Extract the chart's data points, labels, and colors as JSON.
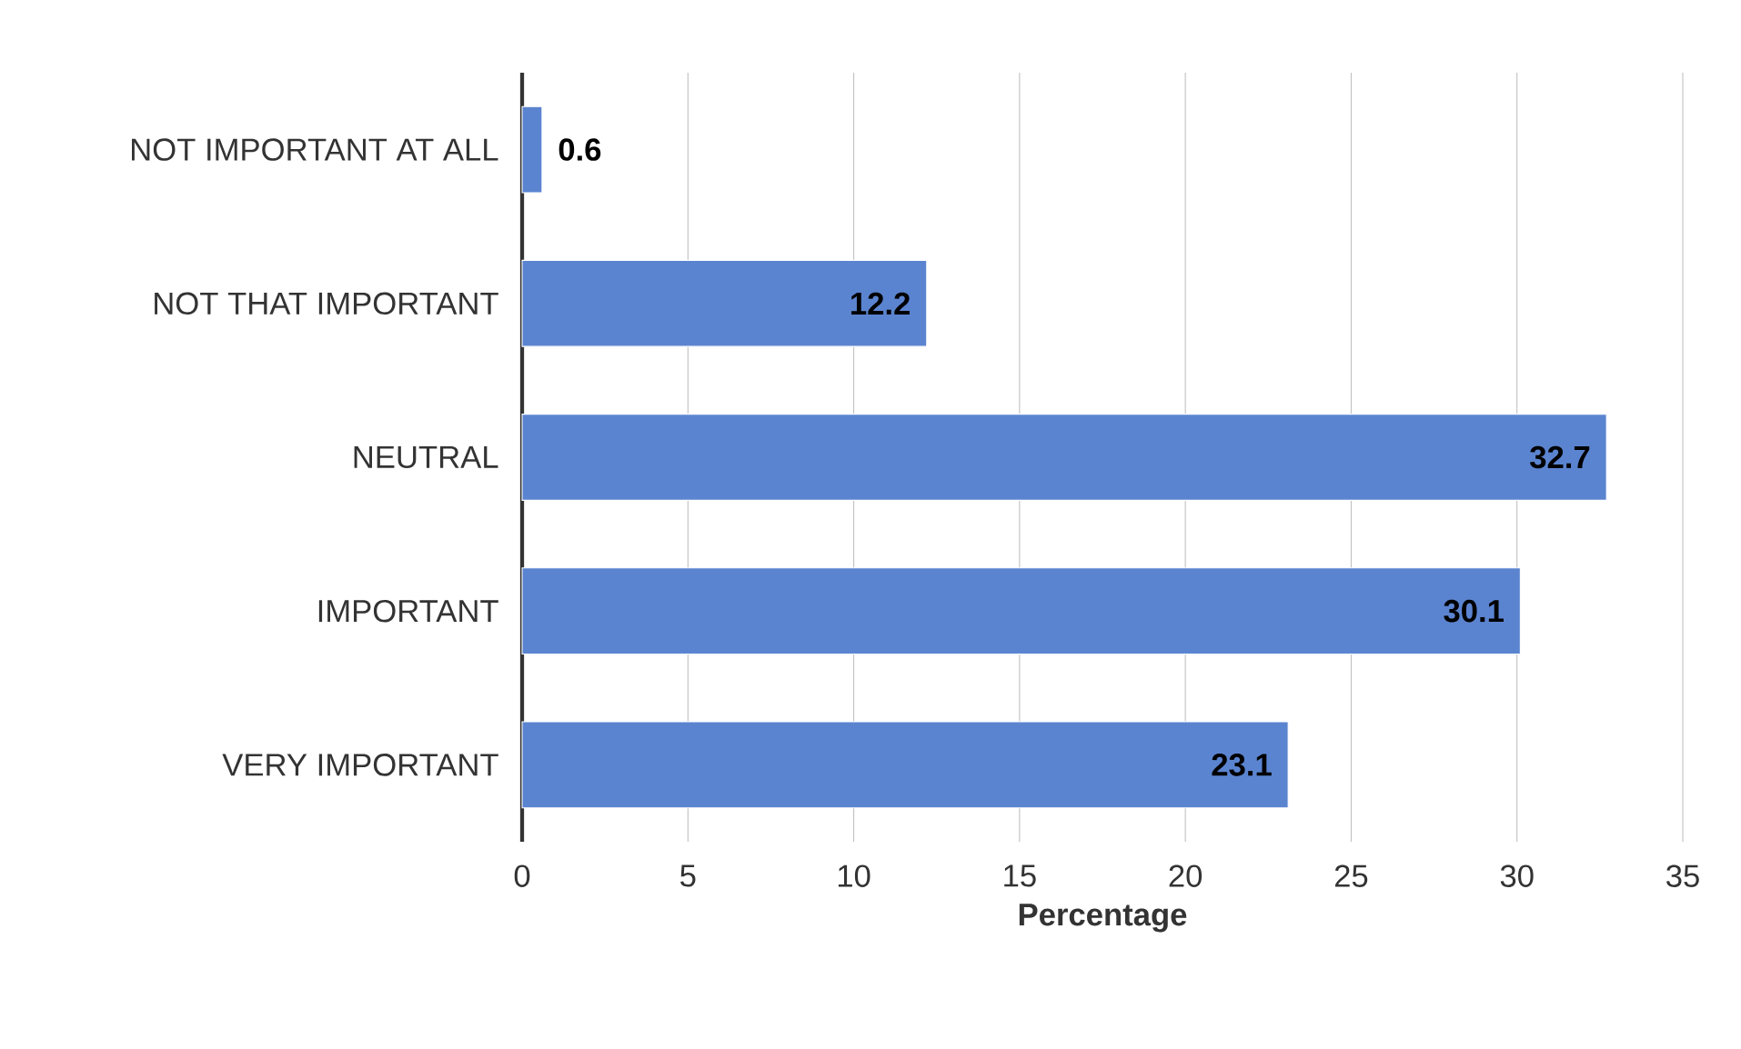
{
  "chart_data": {
    "type": "bar",
    "orientation": "horizontal",
    "xlabel": "Percentage",
    "categories": [
      "NOT IMPORTANT AT ALL",
      "NOT THAT IMPORTANT",
      "NEUTRAL",
      "IMPORTANT",
      "VERY IMPORTANT"
    ],
    "values": [
      0.6,
      12.2,
      32.7,
      30.1,
      23.1
    ],
    "color": "#5b84d0",
    "xlim": [
      0,
      35
    ],
    "xticks": [
      0,
      5,
      10,
      15,
      20,
      25,
      30,
      35
    ],
    "grid": "x",
    "data_labels": true
  }
}
